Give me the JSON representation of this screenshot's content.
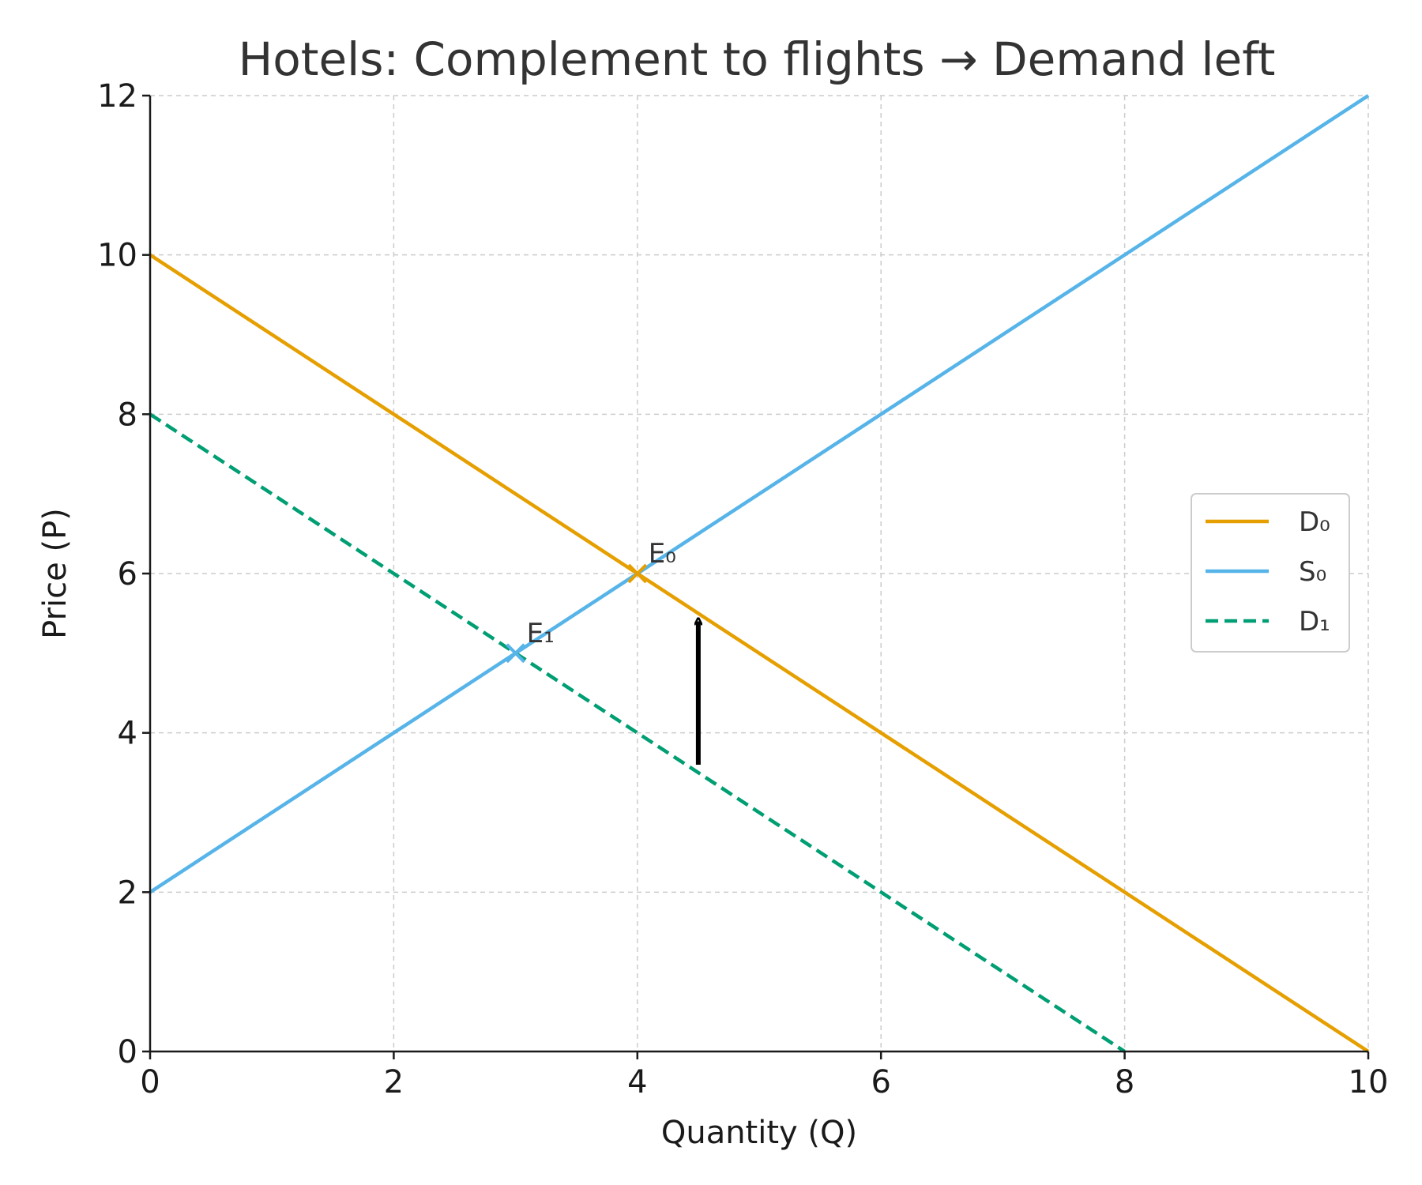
{
  "chart_data": {
    "type": "line",
    "title": "Hotels: Complement to flights → Demand left",
    "xlabel": "Quantity (Q)",
    "ylabel": "Price (P)",
    "xlim": [
      0,
      10
    ],
    "ylim": [
      0,
      12
    ],
    "xticks": [
      0,
      2,
      4,
      6,
      8,
      10
    ],
    "yticks": [
      0,
      2,
      4,
      6,
      8,
      10,
      12
    ],
    "grid": true,
    "legend_position": "center-right",
    "series": [
      {
        "name": "D₀",
        "color": "#E69F00",
        "style": "solid",
        "points": [
          [
            0,
            10
          ],
          [
            10,
            0
          ]
        ]
      },
      {
        "name": "S₀",
        "color": "#56B4E9",
        "style": "solid",
        "points": [
          [
            0,
            2
          ],
          [
            10,
            12
          ]
        ]
      },
      {
        "name": "D₁",
        "color": "#009E73",
        "style": "dashed",
        "points": [
          [
            0,
            8
          ],
          [
            8,
            0
          ]
        ]
      }
    ],
    "points": [
      {
        "label": "E₀",
        "x": 4,
        "y": 6,
        "color": "#E69F00"
      },
      {
        "label": "E₁",
        "x": 3,
        "y": 5,
        "color": "#56B4E9"
      }
    ],
    "arrow": {
      "x": 4.5,
      "from_y": 3.6,
      "to_y": 5.4,
      "color": "#000000"
    }
  }
}
